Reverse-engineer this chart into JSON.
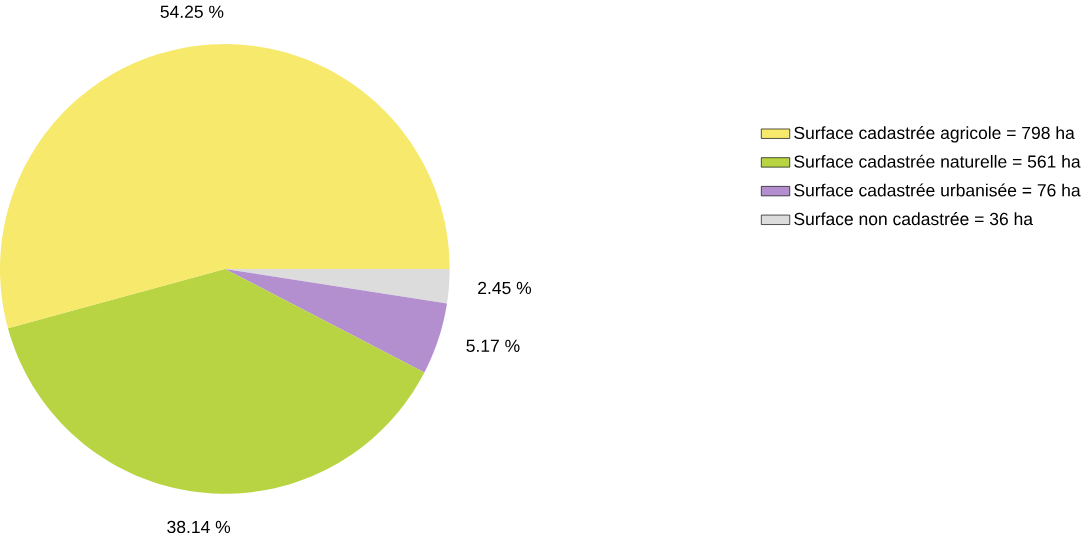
{
  "chart_data": {
    "type": "pie",
    "categories": [
      "Surface cadastrée agricole = 798 ha",
      "Surface cadastrée naturelle = 561 ha",
      "Surface cadastrée urbanisée = 76 ha",
      "Surface non cadastrée = 36 ha"
    ],
    "values": [
      54.25,
      38.14,
      5.17,
      2.45
    ],
    "colors": [
      "#f7e96b",
      "#b8d442",
      "#b48fd0",
      "#dcdcdc"
    ],
    "value_labels": [
      "54.25 %",
      "38.14 %",
      "5.17 %",
      "2.45 %"
    ],
    "legend": "right"
  }
}
